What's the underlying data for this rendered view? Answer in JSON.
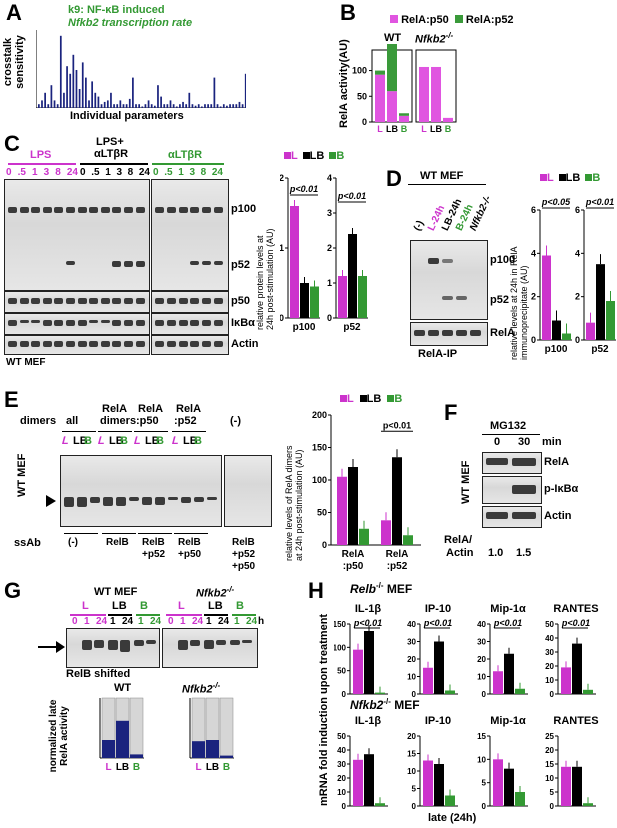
{
  "colors": {
    "L": "#cc33cc",
    "LB": "#000000",
    "B": "#339933",
    "blue": "#1a237e",
    "p50": "#e055e0",
    "p52": "#3a9a3a"
  },
  "panelA": {
    "label": "A",
    "line1": "k9: NF-κB induced",
    "line2": "Nfkb2 transcription rate",
    "ylabel1": "crosstalk",
    "ylabel2": "sensitivity",
    "xlabel": "Individual parameters",
    "chart_data": {
      "type": "bar",
      "values": [
        0.05,
        0.1,
        0.2,
        0.05,
        0.3,
        0.1,
        0.05,
        0.95,
        0.2,
        0.55,
        0.45,
        0.7,
        0.5,
        0.25,
        0.6,
        0.4,
        0.1,
        0.35,
        0.2,
        0.15,
        0.05,
        0.08,
        0.1,
        0.2,
        0.05,
        0.05,
        0.1,
        0.05,
        0.05,
        0.12,
        0.4,
        0.05,
        0.05,
        0.02,
        0.05,
        0.1,
        0.05,
        0.03,
        0.3,
        0.15,
        0.05,
        0.05,
        0.1,
        0.05,
        0.02,
        0.05,
        0.08,
        0.05,
        0.2,
        0.05,
        0.03,
        0.05,
        0.02,
        0.05,
        0.05,
        0.05,
        0.4,
        0.05,
        0.02,
        0.05,
        0.03,
        0.05,
        0.05,
        0.05,
        0.08,
        0.05,
        0.45
      ]
    }
  },
  "panelB": {
    "label": "B",
    "legend_p50": "RelA:p50",
    "legend_p52": "RelA:p52",
    "wt": "WT",
    "ko": "Nfkb2",
    "ko_sup": "-/-",
    "ylabel": "RelA activity(AU)",
    "xL": "L",
    "xLB": "LB",
    "xB": "B",
    "chart_data": {
      "type": "bar",
      "groups": [
        "WT",
        "Nfkb2-/-"
      ],
      "categories": [
        "L",
        "LB",
        "B"
      ],
      "ylim": [
        0,
        140
      ],
      "yticks": [
        "0",
        "50",
        "100"
      ],
      "series": [
        {
          "name": "RelA:p50",
          "wt": [
            92,
            60,
            12
          ],
          "ko": [
            107,
            107,
            8
          ]
        },
        {
          "name": "RelA:p52",
          "wt": [
            8,
            95,
            5
          ],
          "ko": [
            0,
            0,
            0
          ]
        }
      ]
    }
  },
  "panelC": {
    "label": "C",
    "lps": "LPS",
    "lps_lt1": "LPS+",
    "lps_lt2": "αLTβR",
    "lt": "αLTβR",
    "times_lps": [
      "0",
      ".5",
      "1",
      "3",
      "8",
      "24"
    ],
    "times_lpslt": [
      "0",
      ".5",
      "1",
      "3",
      "8",
      "24"
    ],
    "times_lt": [
      "0",
      ".5",
      "1",
      "3",
      "8",
      "24"
    ],
    "rows": [
      "p100",
      "p52",
      "p50",
      "IκBα",
      "Actin"
    ],
    "foot": "WT MEF",
    "legend": [
      "L",
      "LB",
      "B"
    ],
    "ylabel1": "relative protein levels at",
    "ylabel2": "24h post-stimulation (AU)",
    "pval1": "p<0.01",
    "pval2": "p<0.01",
    "xlabel1": "p100",
    "xlabel2": "p52",
    "chart_data": [
      {
        "type": "bar",
        "name": "p100",
        "categories": [
          "L",
          "LB",
          "B"
        ],
        "values": [
          1.6,
          0.5,
          0.45
        ],
        "ylim": [
          0,
          2
        ],
        "yticks": [
          "0",
          "1",
          "2"
        ]
      },
      {
        "type": "bar",
        "name": "p52",
        "categories": [
          "L",
          "LB",
          "B"
        ],
        "values": [
          1.2,
          2.4,
          1.2
        ],
        "ylim": [
          0,
          4
        ],
        "yticks": [
          "0",
          "1",
          "2",
          "3",
          "4"
        ]
      }
    ]
  },
  "panelD": {
    "label": "D",
    "head": "WT MEF",
    "lanes": [
      "(-)",
      "L-24h",
      "LB-24h",
      "B-24h",
      "Nfkb2-/-"
    ],
    "rows": [
      "p100",
      "p52",
      "RelA"
    ],
    "foot": "RelA-IP",
    "legend": [
      "L",
      "LB",
      "B"
    ],
    "ylabel1": "relative levels at 24h in RelA",
    "ylabel2": "immunoprecipitate (AU)",
    "pval1": "p<0.05",
    "pval2": "p<0.01",
    "xlabel1": "p100",
    "xlabel2": "p52",
    "chart_data": [
      {
        "type": "bar",
        "name": "p100",
        "categories": [
          "L",
          "LB",
          "B"
        ],
        "values": [
          3.9,
          0.9,
          0.3
        ],
        "ylim": [
          0,
          6
        ],
        "yticks": [
          "0",
          "2",
          "4",
          "6"
        ]
      },
      {
        "type": "bar",
        "name": "p52",
        "categories": [
          "L",
          "LB",
          "B"
        ],
        "values": [
          0.8,
          3.5,
          1.8
        ],
        "ylim": [
          0,
          6
        ],
        "yticks": [
          "0",
          "2",
          "4",
          "6"
        ]
      }
    ]
  },
  "panelE": {
    "label": "E",
    "dimers": "dimers",
    "groups": [
      "all",
      "RelA dimers",
      "RelA :p50",
      "RelA :p52",
      "(-)"
    ],
    "groups_l1": [
      "all",
      "RelA",
      "RelA",
      "RelA",
      "(-)"
    ],
    "groups_l2": [
      "",
      "dimers",
      ":p50",
      ":p52",
      ""
    ],
    "lanes": [
      "L",
      "LB",
      "B"
    ],
    "side": "WT MEF",
    "ssab": "ssAb",
    "ssab_items": [
      "(-)",
      "RelB",
      "RelB",
      "RelB",
      "RelB"
    ],
    "ssab_items2": [
      "",
      "",
      "+p52",
      "+p50",
      "+p52"
    ],
    "ssab_items3": [
      "",
      "",
      "",
      "",
      "+p50"
    ],
    "legend": [
      "L",
      "LB",
      "B"
    ],
    "ylabel1": "relative levels of RelA dimers",
    "ylabel2": "at 24h post-stimulation (AU)",
    "pval": "p<0.01",
    "xlabel1": "RelA",
    "xlabel1b": ":p50",
    "xlabel2": "RelA",
    "xlabel2b": ":p52",
    "chart_data": {
      "type": "bar",
      "categories": [
        "RelA:p50",
        "RelA:p52"
      ],
      "ylim": [
        0,
        200
      ],
      "yticks": [
        "0",
        "50",
        "100",
        "150",
        "200"
      ],
      "series": [
        {
          "name": "L",
          "values": [
            105,
            38
          ]
        },
        {
          "name": "LB",
          "values": [
            120,
            135
          ]
        },
        {
          "name": "B",
          "values": [
            25,
            15
          ]
        }
      ]
    }
  },
  "panelF": {
    "label": "F",
    "head": "MG132",
    "times": [
      "0",
      "30"
    ],
    "unit": "min",
    "side": "WT MEF",
    "rows": [
      "RelA",
      "p-IκBα",
      "Actin"
    ],
    "ratio_label1": "RelA/",
    "ratio_label2": "Actin",
    "ratios": [
      "1.0",
      "1.5"
    ]
  },
  "panelG": {
    "label": "G",
    "wt": "WT MEF",
    "ko": "Nfkb2",
    "ko_sup": "-/-",
    "groups": [
      "L",
      "LB",
      "B"
    ],
    "times_wt": [
      "0",
      "1",
      "24",
      "1",
      "24",
      "1",
      "24"
    ],
    "times_ko": [
      "0",
      "1",
      "24",
      "1",
      "24",
      "1",
      "24"
    ],
    "unit": "h",
    "shifted": "RelB shifted",
    "ylabel1": "normalized late",
    "ylabel2": "RelA activity",
    "sub_wt": "WT",
    "sub_ko": "Nfkb2",
    "xL": "L",
    "xLB": "LB",
    "xB": "B",
    "chart_data": {
      "type": "bar",
      "groups": [
        "WT",
        "Nfkb2-/-"
      ],
      "categories": [
        "L",
        "LB",
        "B"
      ],
      "series": [
        {
          "name": "blue",
          "wt": [
            0.3,
            0.62,
            0.06
          ],
          "ko": [
            0.28,
            0.3,
            0.04
          ]
        },
        {
          "name": "grey",
          "wt": [
            1,
            1,
            1
          ],
          "ko": [
            1,
            1,
            1
          ]
        }
      ]
    }
  },
  "panelH": {
    "label": "H",
    "relb": "Relb",
    "relb_sup": "-/-",
    "relb_tail": " MEF",
    "nfkb2": "Nfkb2",
    "nfkb2_sup": "-/-",
    "nfkb2_tail": " MEF",
    "genes": [
      "IL-1β",
      "IP-10",
      "Mip-1α",
      "RANTES"
    ],
    "pval": "p<0.01",
    "ylabel": "mRNA fold induction upon treatment",
    "xlabel": "late (24h)",
    "chart_data": [
      {
        "type": "bar",
        "name": "Relb IL-1b",
        "values": [
          95,
          135,
          3
        ],
        "ylim": [
          0,
          150
        ],
        "yticks": [
          "0",
          "50",
          "100",
          "150"
        ]
      },
      {
        "type": "bar",
        "name": "Relb IP-10",
        "values": [
          15,
          30,
          2
        ],
        "ylim": [
          0,
          40
        ],
        "yticks": [
          "0",
          "10",
          "20",
          "30",
          "40"
        ]
      },
      {
        "type": "bar",
        "name": "Relb Mip-1a",
        "values": [
          13,
          23,
          3
        ],
        "ylim": [
          0,
          40
        ],
        "yticks": [
          "0",
          "10",
          "20",
          "30",
          "40"
        ]
      },
      {
        "type": "bar",
        "name": "Relb RANTES",
        "values": [
          19,
          36,
          3
        ],
        "ylim": [
          0,
          50
        ],
        "yticks": [
          "0",
          "10",
          "20",
          "30",
          "40",
          "50"
        ]
      },
      {
        "type": "bar",
        "name": "Nfkb2 IL-1b",
        "values": [
          33,
          37,
          2
        ],
        "ylim": [
          0,
          50
        ],
        "yticks": [
          "0",
          "10",
          "20",
          "30",
          "40",
          "50"
        ]
      },
      {
        "type": "bar",
        "name": "Nfkb2 IP-10",
        "values": [
          13,
          12,
          3
        ],
        "ylim": [
          0,
          20
        ],
        "yticks": [
          "0",
          "5",
          "10",
          "15",
          "20"
        ]
      },
      {
        "type": "bar",
        "name": "Nfkb2 Mip-1a",
        "values": [
          10,
          8,
          3
        ],
        "ylim": [
          0,
          15
        ],
        "yticks": [
          "0",
          "5",
          "10",
          "15"
        ]
      },
      {
        "type": "bar",
        "name": "Nfkb2 RANTES",
        "values": [
          14,
          14,
          1
        ],
        "ylim": [
          0,
          25
        ],
        "yticks": [
          "0",
          "5",
          "10",
          "15",
          "20",
          "25"
        ]
      }
    ]
  }
}
